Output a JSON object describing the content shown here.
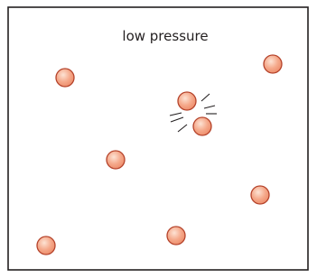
{
  "label": "low pressure"
}
